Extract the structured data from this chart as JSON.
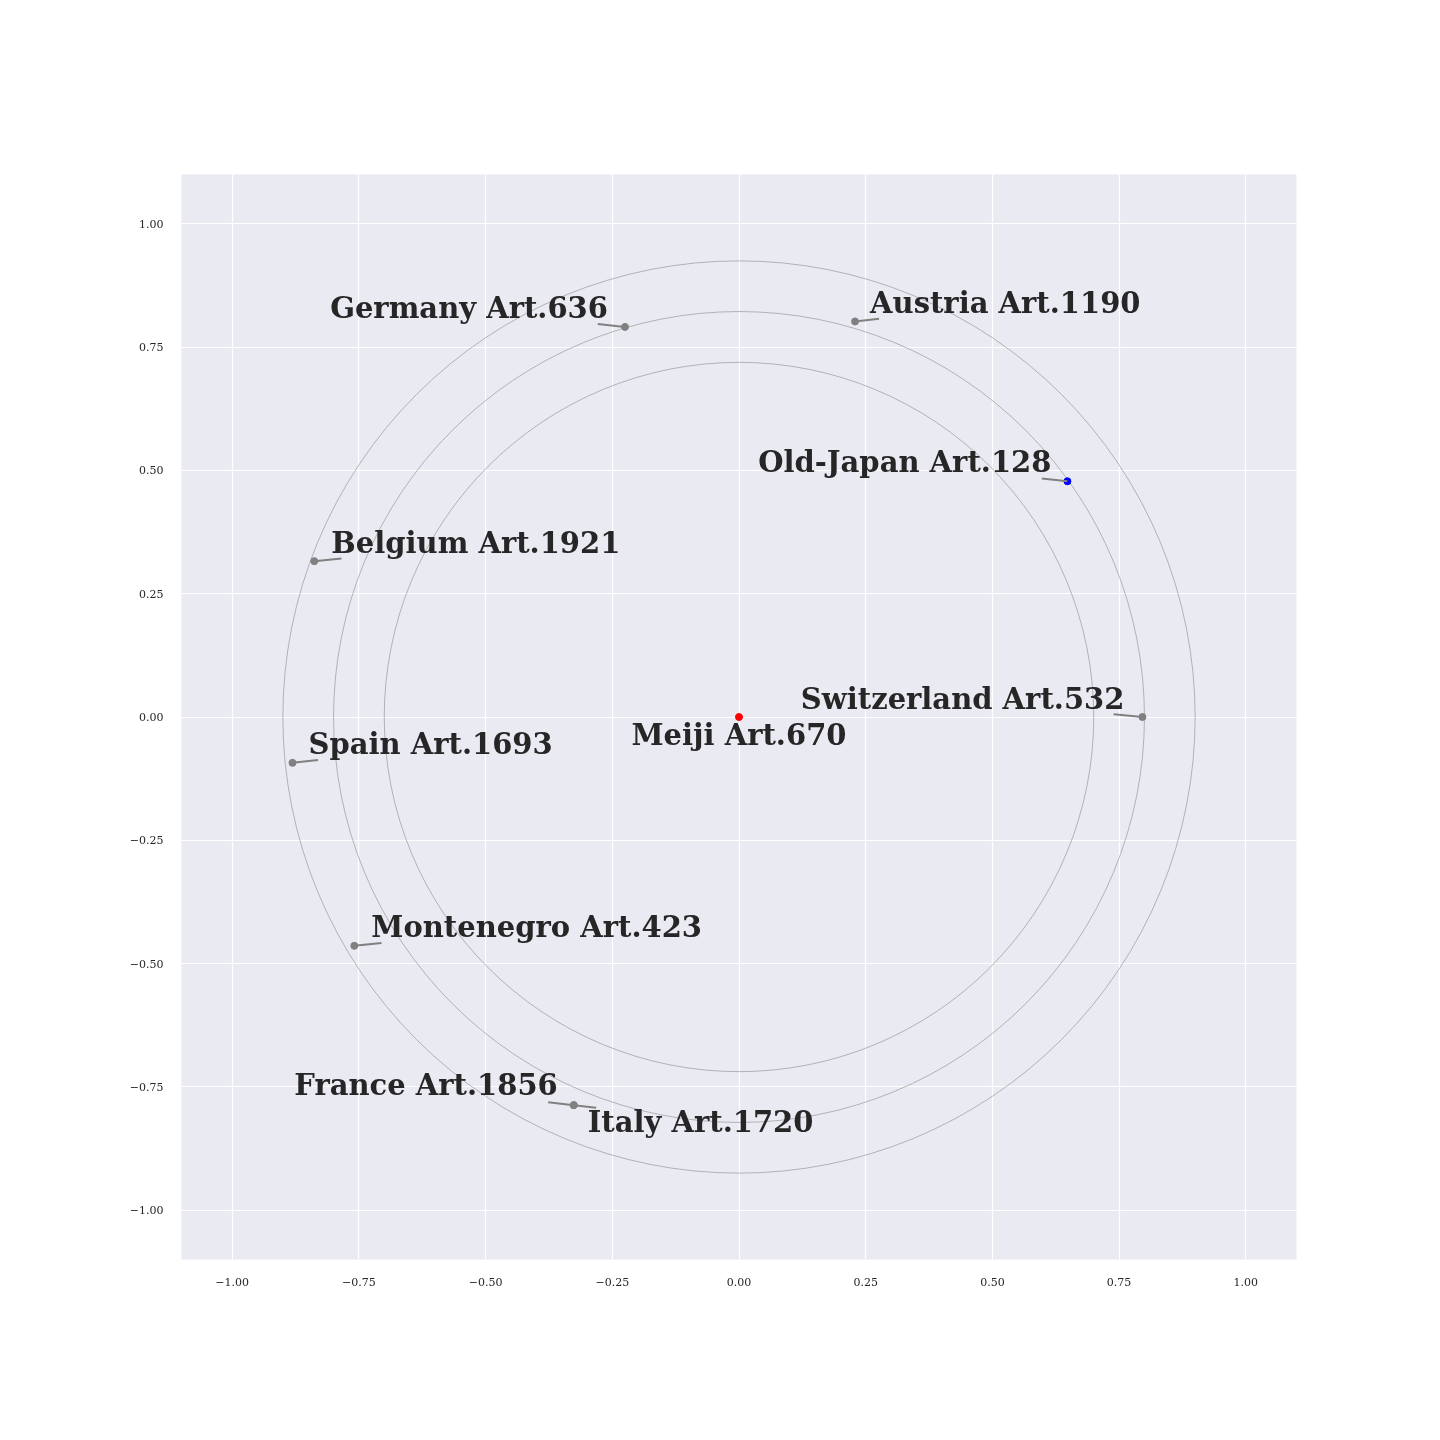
{
  "chart_data": {
    "type": "scatter",
    "marker": "circle",
    "grid": true,
    "xlim": [
      -1.1,
      1.1
    ],
    "ylim": [
      -1.1,
      1.1
    ],
    "xticks": [
      {
        "value": -1,
        "label": "−1.00"
      },
      {
        "value": -0.75,
        "label": "−0.75"
      },
      {
        "value": -0.5,
        "label": "−0.50"
      },
      {
        "value": -0.25,
        "label": "−0.25"
      },
      {
        "value": 0,
        "label": "0.00"
      },
      {
        "value": 0.25,
        "label": "0.25"
      },
      {
        "value": 0.5,
        "label": "0.50"
      },
      {
        "value": 0.75,
        "label": "0.75"
      },
      {
        "value": 1,
        "label": "1.00"
      }
    ],
    "yticks": [
      {
        "value": -1,
        "label": "−1.00"
      },
      {
        "value": -0.75,
        "label": "−0.75"
      },
      {
        "value": -0.5,
        "label": "−0.50"
      },
      {
        "value": -0.25,
        "label": "−0.25"
      },
      {
        "value": 0,
        "label": "0.00"
      },
      {
        "value": 0.25,
        "label": "0.25"
      },
      {
        "value": 0.5,
        "label": "0.50"
      },
      {
        "value": 0.75,
        "label": "0.75"
      },
      {
        "value": 1,
        "label": "1.00"
      }
    ],
    "series": [
      {
        "x": [
          0,
          0.648,
          0.796,
          0.229,
          -0.225,
          -0.838,
          -0.881,
          -0.759,
          -0.326,
          -0.326
        ],
        "values": [
          0,
          0.478,
          0,
          0.802,
          0.791,
          0.316,
          -0.093,
          -0.464,
          -0.787,
          -0.787
        ],
        "colors": [
          "#ff0000",
          "#0000ff",
          "#808080",
          "#808080",
          "#808080",
          "#808080",
          "#808080",
          "#808080",
          "#808080",
          "#808080"
        ]
      }
    ],
    "annotations": [
      {
        "text": "Meiji Art.670",
        "x": 0,
        "y": 0
      },
      {
        "text": "Old-Japan Art.128",
        "x": 0.648,
        "y": 0.478
      },
      {
        "text": "Switzerland Art.532",
        "x": 0.796,
        "y": 0
      },
      {
        "text": "Austria Art.1190",
        "x": 0.229,
        "y": 0.802
      },
      {
        "text": "Germany Art.636",
        "x": -0.225,
        "y": 0.791
      },
      {
        "text": "Belgium Art.1921",
        "x": -0.838,
        "y": 0.316
      },
      {
        "text": "Spain Art.1693",
        "x": -0.881,
        "y": -0.093
      },
      {
        "text": "Montenegro Art.423",
        "x": -0.759,
        "y": -0.464
      },
      {
        "text": "France Art.1856",
        "x": -0.326,
        "y": -0.787
      },
      {
        "text": "Italy Art.1720",
        "x": -0.326,
        "y": -0.787
      }
    ]
  }
}
